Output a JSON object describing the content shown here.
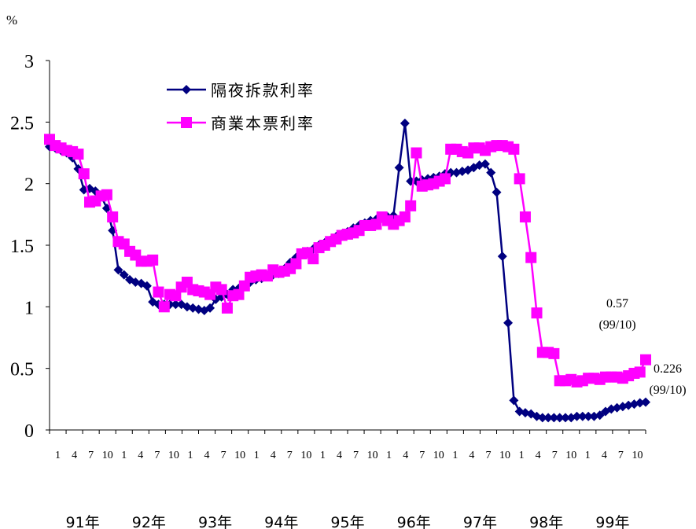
{
  "chart_data": {
    "type": "line",
    "unit_label": "%",
    "y_ticks": [
      "3",
      "2.5",
      "2",
      "1.5",
      "1",
      "0.5",
      "0"
    ],
    "ylim": [
      0,
      3
    ],
    "x_tick_labels": [
      "1",
      "4",
      "7",
      "10",
      "1",
      "4",
      "7",
      "10",
      "1",
      "4",
      "7",
      "10",
      "1",
      "4",
      "7",
      "10",
      "1",
      "4",
      "7",
      "10",
      "1",
      "4",
      "7",
      "10",
      "1",
      "4",
      "7",
      "10",
      "1",
      "4",
      "7",
      "10",
      "1",
      "4",
      "7",
      "10"
    ],
    "year_labels": [
      "91年",
      "92年",
      "93年",
      "94年",
      "95年",
      "96年",
      "97年",
      "98年",
      "99年"
    ],
    "legend_position": "upper-left",
    "series": [
      {
        "name": "隔夜拆款利率",
        "color": "#000080",
        "marker": "diamond",
        "values": [
          2.3,
          2.29,
          2.27,
          2.25,
          2.21,
          2.12,
          1.95,
          1.96,
          1.94,
          1.9,
          1.8,
          1.62,
          1.3,
          1.26,
          1.22,
          1.2,
          1.19,
          1.17,
          1.04,
          1.02,
          1.02,
          1.02,
          1.02,
          1.02,
          1.0,
          0.99,
          0.98,
          0.97,
          0.99,
          1.06,
          1.08,
          1.1,
          1.14,
          1.15,
          1.17,
          1.2,
          1.22,
          1.23,
          1.25,
          1.26,
          1.27,
          1.31,
          1.36,
          1.4,
          1.43,
          1.45,
          1.47,
          1.5,
          1.52,
          1.54,
          1.57,
          1.59,
          1.61,
          1.64,
          1.66,
          1.68,
          1.7,
          1.71,
          1.72,
          1.73,
          1.74,
          2.13,
          2.49,
          2.02,
          2.02,
          2.03,
          2.04,
          2.05,
          2.06,
          2.08,
          2.09,
          2.09,
          2.1,
          2.11,
          2.13,
          2.15,
          2.16,
          2.09,
          1.93,
          1.41,
          0.87,
          0.24,
          0.15,
          0.14,
          0.13,
          0.11,
          0.1,
          0.1,
          0.1,
          0.1,
          0.1,
          0.1,
          0.11,
          0.11,
          0.11,
          0.11,
          0.12,
          0.15,
          0.17,
          0.18,
          0.19,
          0.2,
          0.21,
          0.22,
          0.226
        ]
      },
      {
        "name": "商業本票利率",
        "color": "#ff00ff",
        "marker": "square",
        "values": [
          2.36,
          2.31,
          2.29,
          2.27,
          2.26,
          2.24,
          2.08,
          1.85,
          1.86,
          1.9,
          1.91,
          1.73,
          1.53,
          1.51,
          1.45,
          1.42,
          1.37,
          1.37,
          1.38,
          1.12,
          1.0,
          1.1,
          1.09,
          1.16,
          1.2,
          1.14,
          1.13,
          1.12,
          1.1,
          1.16,
          1.14,
          0.99,
          1.09,
          1.1,
          1.17,
          1.24,
          1.25,
          1.26,
          1.25,
          1.3,
          1.28,
          1.29,
          1.31,
          1.35,
          1.43,
          1.44,
          1.39,
          1.48,
          1.5,
          1.53,
          1.55,
          1.58,
          1.59,
          1.6,
          1.62,
          1.66,
          1.66,
          1.67,
          1.73,
          1.7,
          1.67,
          1.7,
          1.73,
          1.82,
          2.25,
          1.98,
          1.99,
          2.0,
          2.02,
          2.04,
          2.28,
          2.28,
          2.26,
          2.25,
          2.29,
          2.29,
          2.27,
          2.3,
          2.31,
          2.31,
          2.3,
          2.28,
          2.04,
          1.73,
          1.4,
          0.95,
          0.63,
          0.63,
          0.62,
          0.4,
          0.4,
          0.41,
          0.39,
          0.4,
          0.42,
          0.42,
          0.41,
          0.43,
          0.43,
          0.43,
          0.42,
          0.44,
          0.46,
          0.47,
          0.57
        ]
      }
    ],
    "annotations": [
      {
        "value": "0.57",
        "date": "(99/10)",
        "series": "商業本票利率"
      },
      {
        "value": "0.226",
        "date": "(99/10)",
        "series": "隔夜拆款利率"
      }
    ]
  }
}
